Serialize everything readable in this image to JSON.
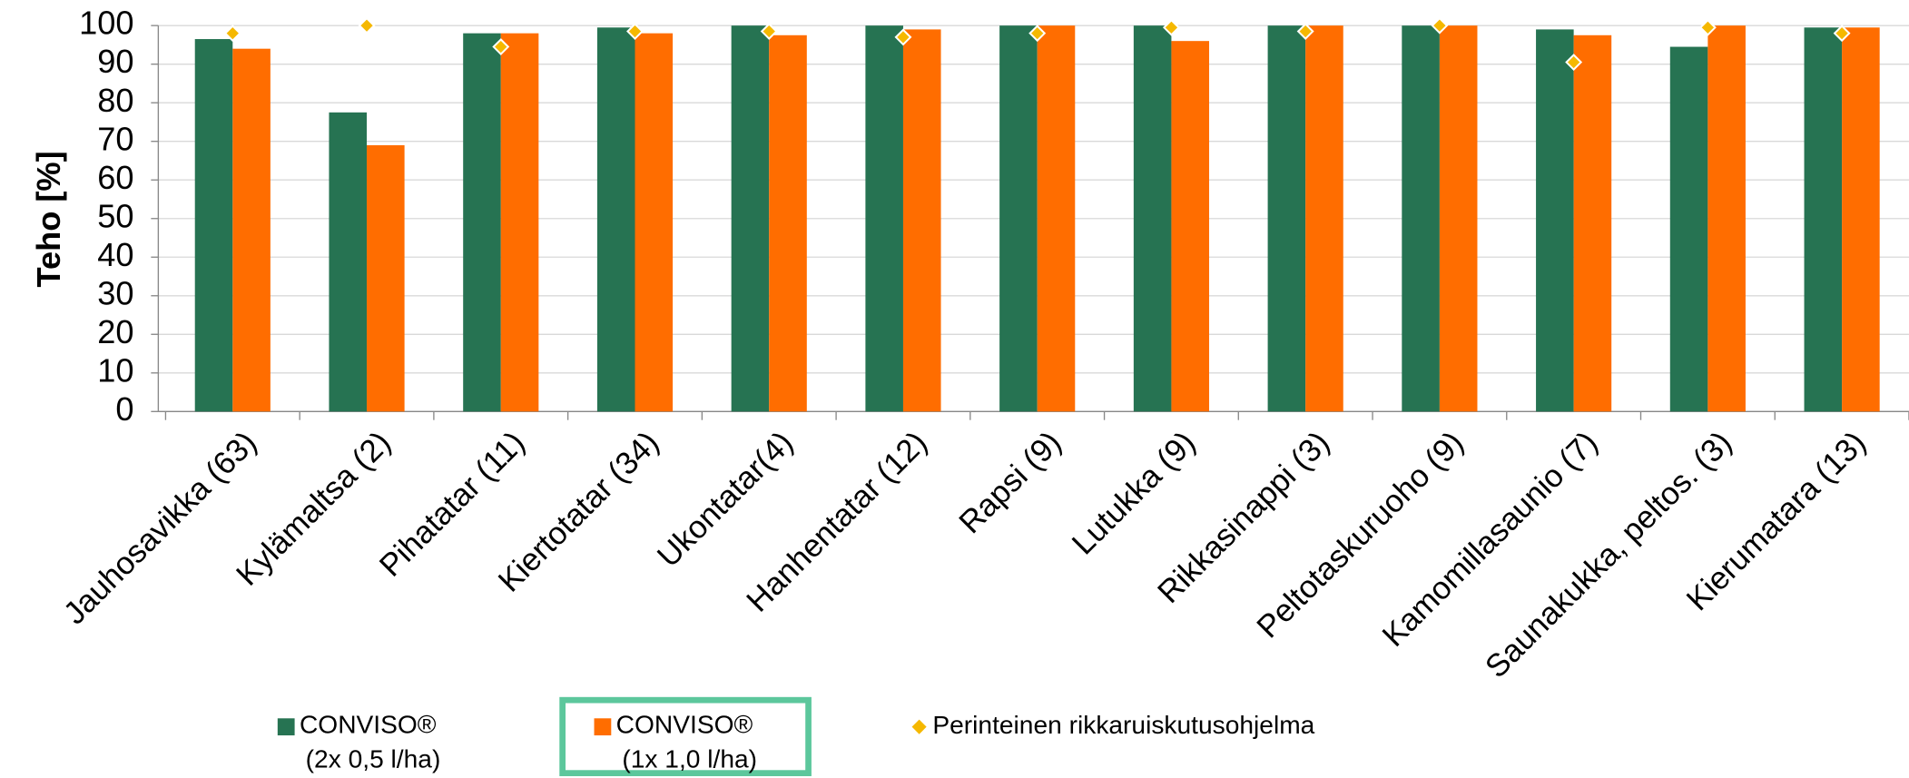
{
  "chart_data": {
    "type": "bar",
    "y_label": "Teho [%]",
    "categories": [
      "Jauhosavikka (63)",
      "Kylämaltsa (2)",
      "Pihatatar (11)",
      "Kiertotatar (34)",
      "Ukontatar(4)",
      "Hanhentatar (12)",
      "Rapsi (9)",
      "Lutukka (9)",
      "Rikkasinappi (3)",
      "Peltotaskuruoho (9)",
      "Kamomillasaunio (7)",
      "Saunakukka, peltos. (3)",
      "Kierumatara (13)"
    ],
    "series": [
      {
        "name": "CONVISO®\n(2x 0,5 l/ha)",
        "color": "#267352",
        "mark": "bar",
        "values": [
          96.5,
          77.5,
          98,
          99.5,
          100,
          100,
          100,
          100,
          100,
          100,
          99,
          94.5,
          99.5
        ]
      },
      {
        "name": "CONVISO®\n(1x 1,0 l/ha)",
        "color": "#ff6d00",
        "mark": "bar",
        "highlight": true,
        "values": [
          94,
          69,
          98,
          98,
          97.5,
          99,
          100,
          96,
          100,
          100,
          97.5,
          100,
          99.5
        ]
      },
      {
        "name": "Perinteinen rikkaruiskutusohjelma",
        "color": "#f5b800",
        "mark": "diamond",
        "values": [
          98,
          100,
          94.5,
          98.5,
          98.5,
          97,
          98,
          99.5,
          98.5,
          100,
          90.5,
          99.5,
          98
        ]
      }
    ],
    "ylim": [
      0,
      100
    ],
    "yticks": [
      0,
      10,
      20,
      30,
      40,
      50,
      60,
      70,
      80,
      90,
      100
    ],
    "grid": true
  }
}
